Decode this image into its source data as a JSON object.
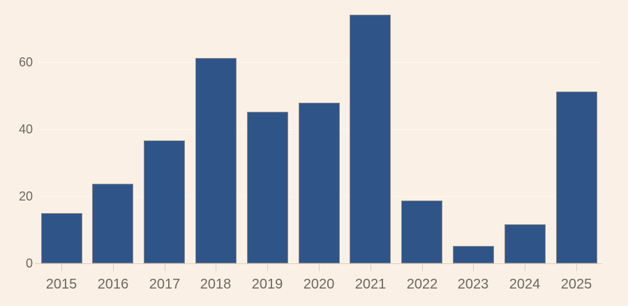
{
  "chart_data": {
    "type": "bar",
    "title": "",
    "xlabel": "",
    "ylabel": "",
    "categories": [
      "2015",
      "2016",
      "2017",
      "2018",
      "2019",
      "2020",
      "2021",
      "2022",
      "2023",
      "2024",
      "2025"
    ],
    "values": [
      15,
      23.8,
      36.7,
      61.3,
      45.3,
      48,
      74.2,
      18.7,
      5.3,
      11.7,
      51.2
    ],
    "yticks": [
      0,
      20,
      40,
      60
    ],
    "ylim": [
      0,
      75.5
    ],
    "grid": true,
    "legend_position": "none"
  },
  "colors": {
    "background": "#FAF0E5",
    "bar_fill": "#2F5588",
    "bar_stroke": "#8A8C92",
    "gridline": "#FFF8F0",
    "axis_line": "#D9CFC4",
    "tick_mark": "#D9CFC4",
    "label_text": "#6E6761"
  }
}
